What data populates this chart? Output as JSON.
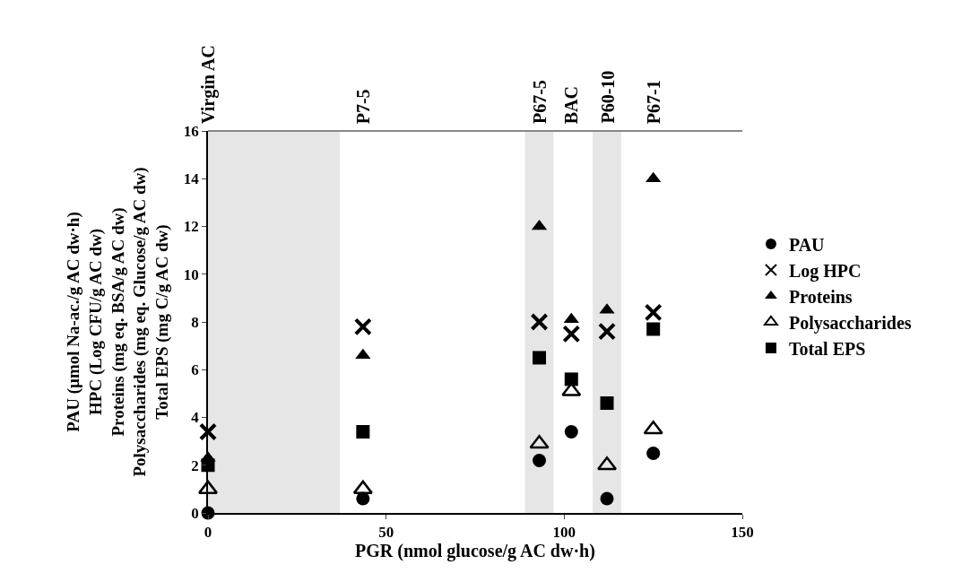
{
  "chart_data": {
    "type": "scatter",
    "xlabel": "PGR (nmol glucose/g AC dw·h)",
    "ylabel": "PAU (µmol Na-ac./g AC dw·h)\nHPC (Log CFU/g AC dw)\nProteins (mg eq. BSA/g AC dw)\nPolysaccharides (mg eq. Glucose/g AC dw)\nTotal EPS (mg C/g AC dw)",
    "x": [
      0,
      43.5,
      93,
      102,
      112,
      125
    ],
    "series": [
      {
        "name": "PAU",
        "color": "#000000",
        "marker": "circle",
        "values": [
          0,
          0.6,
          2.2,
          3.4,
          0.6,
          2.5
        ]
      },
      {
        "name": "Log HPC",
        "color": "#000000",
        "marker": "cross",
        "values": [
          3.4,
          7.8,
          8.0,
          7.5,
          7.6,
          8.4
        ]
      },
      {
        "name": "Proteins",
        "color": "#000000",
        "marker": "triangle",
        "values": [
          2.3,
          6.6,
          12.0,
          8.1,
          8.5,
          14.0
        ]
      },
      {
        "name": "Polysaccharides",
        "color": "#000000",
        "marker": "triangle-open",
        "values": [
          1.0,
          1.0,
          2.9,
          5.1,
          2.0,
          3.5
        ]
      },
      {
        "name": "Total EPS",
        "color": "#000000",
        "marker": "square",
        "values": [
          2.0,
          3.4,
          6.5,
          5.6,
          4.6,
          7.7
        ]
      }
    ],
    "bands": [
      {
        "axis": "x",
        "from": 0,
        "to": 37,
        "color": "#e6e6e6"
      },
      {
        "axis": "x",
        "from": 89,
        "to": 97,
        "color": "#e6e6e6"
      },
      {
        "axis": "x",
        "from": 108,
        "to": 116,
        "color": "#e6e6e6"
      }
    ],
    "annotations": [
      "Virgin AC",
      "P7-5",
      "P67-5",
      "BAC",
      "P60-10",
      "P67-1"
    ],
    "xlim": [
      0,
      150
    ],
    "xticks": [
      0,
      50,
      100,
      150
    ],
    "ylim": [
      0,
      16
    ],
    "yticks": [
      0,
      2,
      4,
      6,
      8,
      10,
      12,
      14,
      16
    ],
    "grid": false,
    "legend": "right"
  }
}
